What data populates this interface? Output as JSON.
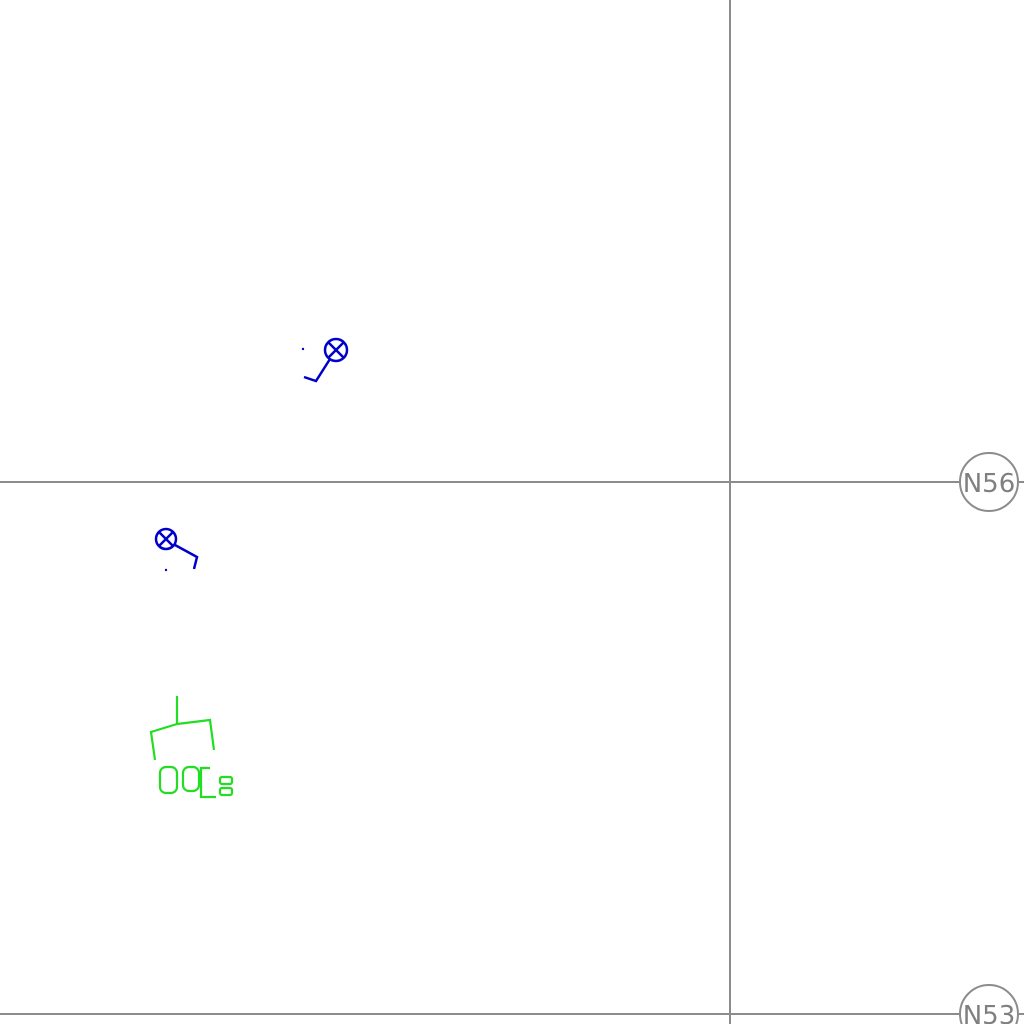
{
  "grid": {
    "line_color": "#8c8c8c",
    "bubbles": [
      {
        "label": "N56"
      },
      {
        "label": "N53"
      }
    ]
  },
  "symbols": {
    "fixture_color": "#0000cc",
    "equipment_color": "#22dd22",
    "fixture_icon": "light-fixture-x-circle",
    "equipment_icon": "panel-equipment"
  }
}
